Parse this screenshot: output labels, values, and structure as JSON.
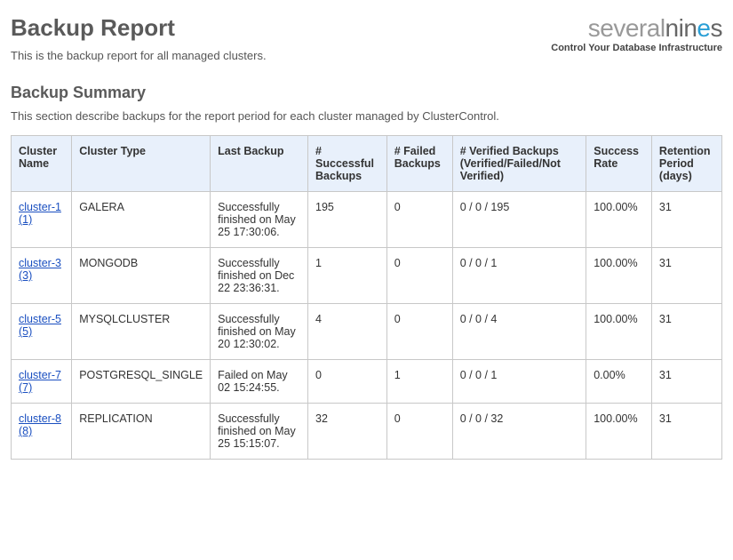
{
  "header": {
    "title": "Backup Report",
    "intro": "This is the backup report for all managed clusters."
  },
  "brand": {
    "part1": "several",
    "part2": "nin",
    "part3": "e",
    "part4": "s",
    "tagline": "Control Your Database Infrastructure"
  },
  "summary": {
    "heading": "Backup Summary",
    "description": "This section describe backups for the report period for each cluster managed by ClusterControl."
  },
  "table": {
    "columns": [
      "Cluster Name",
      "Cluster Type",
      "Last Backup",
      "# Successful Backups",
      "# Failed Backups",
      "# Verified Backups (Verified/Failed/Not Verified)",
      "Success Rate",
      "Retention Period (days)"
    ],
    "rows": [
      {
        "name": "cluster-1 (1)",
        "type": "GALERA",
        "last": "Successfully finished on May 25 17:30:06.",
        "succ": "195",
        "fail": "0",
        "verified": "0 / 0 / 195",
        "rate": "100.00%",
        "retention": "31"
      },
      {
        "name": "cluster-3 (3)",
        "type": "MONGODB",
        "last": "Successfully finished on Dec 22 23:36:31.",
        "succ": "1",
        "fail": "0",
        "verified": "0 / 0 / 1",
        "rate": "100.00%",
        "retention": "31"
      },
      {
        "name": "cluster-5 (5)",
        "type": "MYSQLCLUSTER",
        "last": "Successfully finished on May 20 12:30:02.",
        "succ": "4",
        "fail": "0",
        "verified": "0 / 0 / 4",
        "rate": "100.00%",
        "retention": "31"
      },
      {
        "name": "cluster-7 (7)",
        "type": "POSTGRESQL_SINGLE",
        "last": "Failed on May 02 15:24:55.",
        "succ": "0",
        "fail": "1",
        "verified": "0 / 0 / 1",
        "rate": "0.00%",
        "retention": "31"
      },
      {
        "name": "cluster-8 (8)",
        "type": "REPLICATION",
        "last": "Successfully finished on May 25 15:15:07.",
        "succ": "32",
        "fail": "0",
        "verified": "0 / 0 / 32",
        "rate": "100.00%",
        "retention": "31"
      }
    ]
  }
}
